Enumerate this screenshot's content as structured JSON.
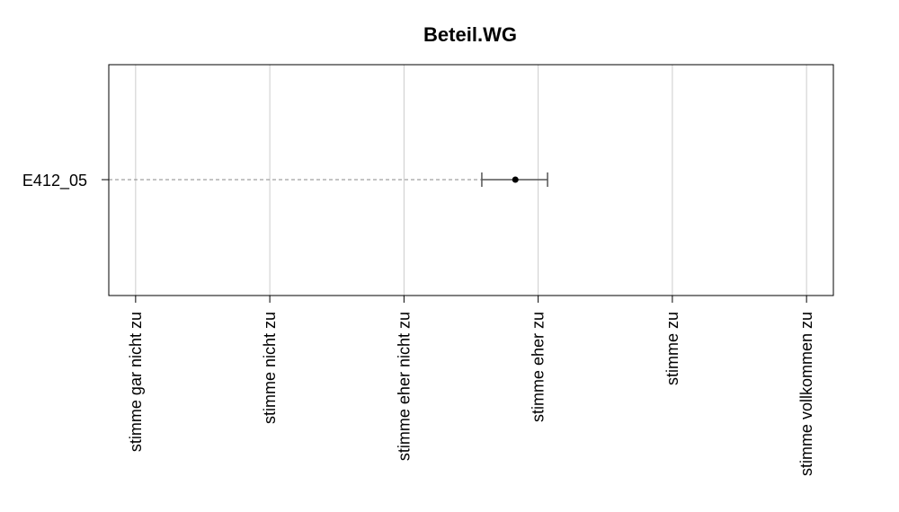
{
  "chart_data": {
    "type": "scatter",
    "title": "Beteil.WG",
    "xlabel": "",
    "ylabel": "",
    "categories": [
      "E412_05"
    ],
    "x_ticks": [
      "stimme gar nicht zu",
      "stimme nicht zu",
      "stimme eher nicht zu",
      "stimme eher zu",
      "stimme zu",
      "stimme vollkommen zu"
    ],
    "xlim": [
      0.8,
      6.2
    ],
    "grid": true,
    "series": [
      {
        "values": [
          3.83
        ],
        "lower": [
          3.58
        ],
        "upper": [
          4.07
        ]
      }
    ],
    "colors": {
      "grid": "#cccccc",
      "point": "#000000",
      "errorbar": "#555555",
      "guide": "#888888"
    }
  }
}
